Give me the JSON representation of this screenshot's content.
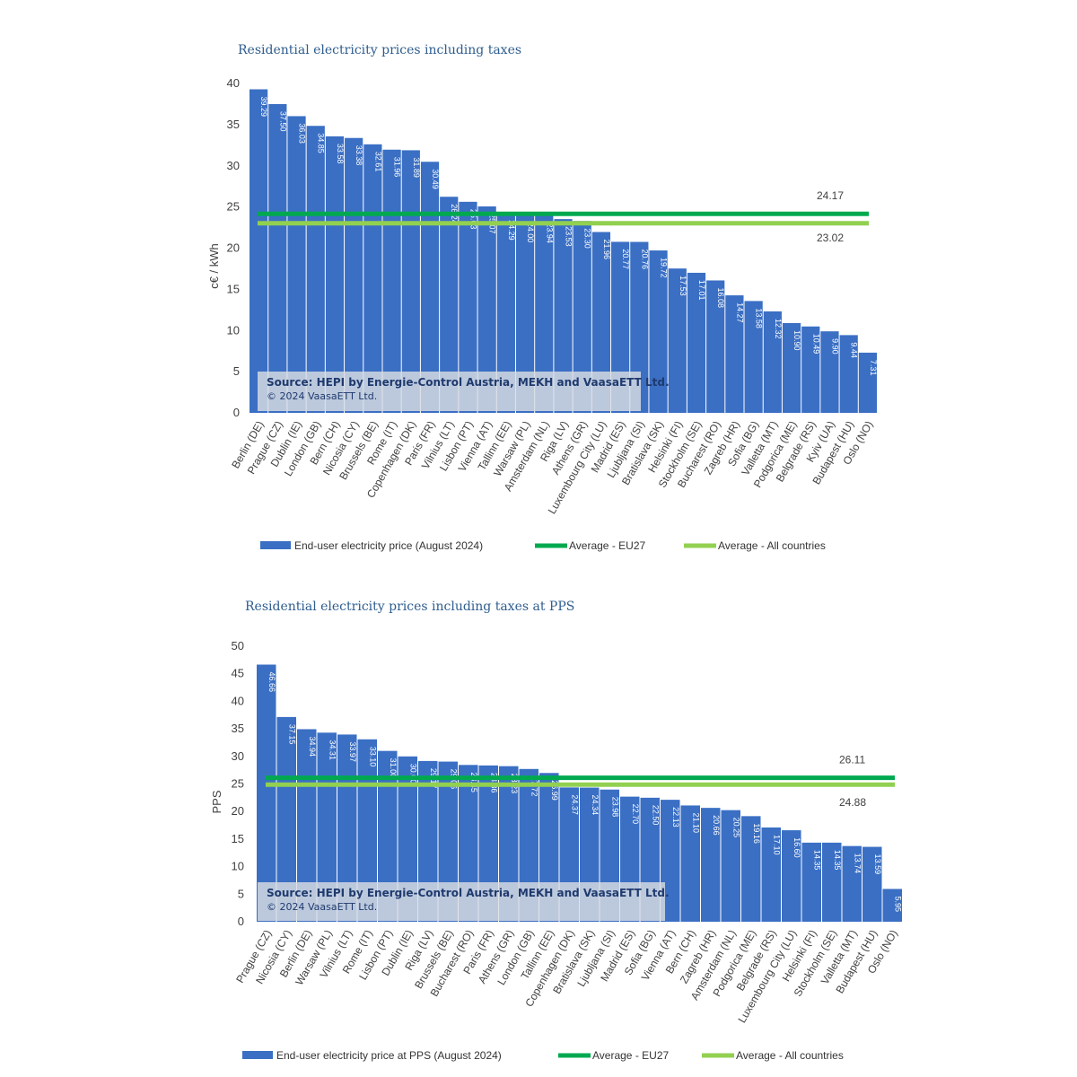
{
  "chart_data": [
    {
      "type": "bar",
      "title": "Residential electricity prices including taxes",
      "ylabel": "c€ / kWh",
      "ylim": [
        0,
        40
      ],
      "yticks": [
        0,
        5,
        10,
        15,
        20,
        25,
        30,
        35,
        40
      ],
      "grid": false,
      "legend_position": "bottom",
      "categories": [
        "Berlin (DE)",
        "Prague (CZ)",
        "Dublin (IE)",
        "London (GB)",
        "Bern (CH)",
        "Nicosia (CY)",
        "Brussels (BE)",
        "Rome (IT)",
        "Copenhagen (DK)",
        "Paris (FR)",
        "Vilnius (LT)",
        "Lisbon (PT)",
        "Vienna (AT)",
        "Tallinn (EE)",
        "Warsaw (PL)",
        "Amsterdam (NL)",
        "Riga (LV)",
        "Athens (GR)",
        "Luxembourg City (LU)",
        "Madrid (ES)",
        "Ljubljana (SI)",
        "Bratislava (SK)",
        "Helsinki (FI)",
        "Stockholm (SE)",
        "Bucharest (RO)",
        "Zagreb (HR)",
        "Sofia (BG)",
        "Valletta (MT)",
        "Podgorica (ME)",
        "Belgrade (RS)",
        "Kyiv (UA)",
        "Budapest (HU)",
        "Oslo (NO)"
      ],
      "values": [
        39.29,
        37.5,
        36.03,
        34.85,
        33.58,
        33.38,
        32.61,
        31.96,
        31.89,
        30.49,
        26.24,
        25.63,
        25.07,
        24.29,
        24.0,
        23.94,
        23.53,
        23.3,
        21.96,
        20.77,
        20.76,
        19.72,
        17.53,
        17.01,
        16.08,
        14.27,
        13.58,
        12.32,
        10.9,
        10.49,
        9.9,
        9.44,
        7.31
      ],
      "value_labels": [
        "39.29",
        "37.50",
        "36.03",
        "34.85",
        "33.58",
        "33.38",
        "32.61",
        "31.96",
        "31.89",
        "30.49",
        "26.24",
        "25.63",
        "25.07",
        "24.29",
        "24.00",
        "23.94",
        "23.53",
        "23.30",
        "21.96",
        "20.77",
        "20.76",
        "19.72",
        "17.53",
        "17.01",
        "16.08",
        "14.27",
        "13.58",
        "12.32",
        "10.90",
        "10.49",
        "9.90",
        "9.44",
        "7.31"
      ],
      "averages": [
        {
          "name": "Average - EU27",
          "value": 24.17,
          "label": "24.17",
          "color": "#00a94f"
        },
        {
          "name": "Average - All countries",
          "value": 23.02,
          "label": "23.02",
          "color": "#92d050"
        }
      ],
      "series_name": "End-user electricity price (August 2024)",
      "bar_color": "#3a6fc4",
      "source_line1": "Source: HEPI by Energie-Control Austria, MEKH and VaasaETT Ltd.",
      "source_line2": "© 2024 VaasaETT Ltd."
    },
    {
      "type": "bar",
      "title": "Residential electricity prices including taxes at PPS",
      "ylabel": "PPS",
      "ylim": [
        0,
        50
      ],
      "yticks": [
        0,
        5,
        10,
        15,
        20,
        25,
        30,
        35,
        40,
        45,
        50
      ],
      "grid": false,
      "legend_position": "bottom",
      "categories": [
        "Prague (CZ)",
        "Nicosia (CY)",
        "Berlin (DE)",
        "Warsaw (PL)",
        "Vilnius (LT)",
        "Rome (IT)",
        "Lisbon (PT)",
        "Dublin (IE)",
        "Riga (LV)",
        "Brussels (BE)",
        "Bucharest (RO)",
        "Paris (FR)",
        "Athens (GR)",
        "London (GB)",
        "Tallinn (EE)",
        "Copenhagen (DK)",
        "Bratislava (SK)",
        "Ljubljana (SI)",
        "Madrid (ES)",
        "Sofia (BG)",
        "Vienna (AT)",
        "Bern (CH)",
        "Zagreb (HR)",
        "Amsterdam (NL)",
        "Podgorica (ME)",
        "Belgrade (RS)",
        "Luxembourg City (LU)",
        "Helsinki (FI)",
        "Stockholm (SE)",
        "Valletta (MT)",
        "Budapest (HU)",
        "Oslo (NO)"
      ],
      "values": [
        46.66,
        37.15,
        34.94,
        34.31,
        33.97,
        33.1,
        31.0,
        30.0,
        29.17,
        29.06,
        28.45,
        28.36,
        28.23,
        27.72,
        26.99,
        24.37,
        24.34,
        23.98,
        22.7,
        22.5,
        22.13,
        21.1,
        20.66,
        20.25,
        19.16,
        17.1,
        16.6,
        14.35,
        14.35,
        13.74,
        13.59,
        5.95
      ],
      "value_labels": [
        "46.66",
        "37.15",
        "34.94",
        "34.31",
        "33.97",
        "33.10",
        "31.00",
        "30.00",
        "29.17",
        "29.06",
        "28.45",
        "28.36",
        "28.23",
        "27.72",
        "26.99",
        "24.37",
        "24.34",
        "23.98",
        "22.70",
        "22.50",
        "22.13",
        "21.10",
        "20.66",
        "20.25",
        "19.16",
        "17.10",
        "16.60",
        "14.35",
        "14.35",
        "13.74",
        "13.59",
        "5.95"
      ],
      "averages": [
        {
          "name": "Average - EU27",
          "value": 26.11,
          "label": "26.11",
          "color": "#00a94f"
        },
        {
          "name": "Average - All countries",
          "value": 24.88,
          "label": "24.88",
          "color": "#92d050"
        }
      ],
      "series_name": "End-user electricity price at PPS (August 2024)",
      "bar_color": "#3a6fc4",
      "source_line1": "Source: HEPI by Energie-Control Austria, MEKH and VaasaETT Ltd.",
      "source_line2": "© 2024 VaasaETT Ltd."
    }
  ]
}
